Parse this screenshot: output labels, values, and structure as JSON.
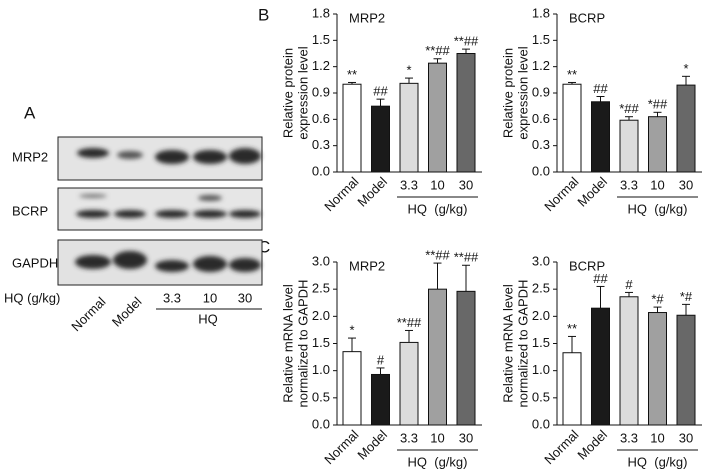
{
  "panel_labels": {
    "a": "A",
    "b": "B",
    "c": "C"
  },
  "blot_panel": {
    "rows": [
      "MRP2",
      "BCRP",
      "GAPDH"
    ],
    "dose_label": "HQ (g/kg)",
    "lanes": [
      "Normal",
      "Model",
      "3.3",
      "10",
      "30"
    ],
    "group_label": "HQ"
  },
  "chart_data": [
    {
      "type": "bar",
      "title": "MRP2",
      "ylabel": [
        "Relative protein",
        "expression level"
      ],
      "categories": [
        "Normal",
        "Model",
        "3.3",
        "10",
        "30"
      ],
      "group_label": "HQ  (g/kg)",
      "values": [
        1.0,
        0.75,
        1.01,
        1.24,
        1.35
      ],
      "errors": [
        0.02,
        0.08,
        0.06,
        0.05,
        0.05
      ],
      "annotations": [
        "**",
        "##",
        "*",
        "**##",
        "**##"
      ],
      "colors": [
        "#ffffff",
        "#1a1a1a",
        "#dcdcdc",
        "#a0a0a0",
        "#686868"
      ],
      "ylim": [
        0,
        1.8
      ],
      "yticks": [
        {
          "value": 0,
          "label": "0.0"
        },
        0.3,
        0.6,
        0.9,
        1.2,
        1.5,
        1.8
      ]
    },
    {
      "type": "bar",
      "title": "BCRP",
      "ylabel": [
        "Relative protein",
        "expression level"
      ],
      "categories": [
        "Normal",
        "Model",
        "3.3",
        "10",
        "30"
      ],
      "group_label": "HQ  (g/kg)",
      "values": [
        1.0,
        0.8,
        0.59,
        0.63,
        0.99
      ],
      "errors": [
        0.02,
        0.06,
        0.04,
        0.05,
        0.1
      ],
      "annotations": [
        "**",
        "##",
        "*##",
        "*##",
        "*"
      ],
      "colors": [
        "#ffffff",
        "#1a1a1a",
        "#dcdcdc",
        "#a0a0a0",
        "#686868"
      ],
      "ylim": [
        0,
        1.8
      ],
      "yticks": [
        {
          "value": 0,
          "label": "0.0"
        },
        0.3,
        0.6,
        0.9,
        1.2,
        1.5,
        1.8
      ]
    },
    {
      "type": "bar",
      "title": "MRP2",
      "ylabel": [
        "Relative mRNA level",
        "normalized to GAPDH"
      ],
      "categories": [
        "Normal",
        "Model",
        "3.3",
        "10",
        "30"
      ],
      "group_label": "HQ  (g/kg)",
      "values": [
        1.35,
        0.93,
        1.52,
        2.5,
        2.46
      ],
      "errors": [
        0.25,
        0.12,
        0.22,
        0.48,
        0.48
      ],
      "annotations": [
        "*",
        "#",
        "**##",
        "**##",
        "**##"
      ],
      "colors": [
        "#ffffff",
        "#1a1a1a",
        "#dcdcdc",
        "#a0a0a0",
        "#686868"
      ],
      "ylim": [
        0,
        3.0
      ],
      "yticks": [
        {
          "value": 0,
          "label": "0.0"
        },
        0.5,
        {
          "value": 1,
          "label": "1.0"
        },
        1.5,
        {
          "value": 2,
          "label": "2.0"
        },
        2.5,
        {
          "value": 3,
          "label": "3.0"
        }
      ]
    },
    {
      "type": "bar",
      "title": "BCRP",
      "ylabel": [
        "Relative mRNA level",
        "normalized to GAPDH"
      ],
      "categories": [
        "Normal",
        "Model",
        "3.3",
        "10",
        "30"
      ],
      "group_label": "HQ  (g/kg)",
      "values": [
        1.33,
        2.15,
        2.36,
        2.07,
        2.02
      ],
      "errors": [
        0.3,
        0.4,
        0.08,
        0.1,
        0.2
      ],
      "annotations": [
        "**",
        "##",
        "#",
        "*#",
        "*#"
      ],
      "colors": [
        "#ffffff",
        "#1a1a1a",
        "#dcdcdc",
        "#a0a0a0",
        "#686868"
      ],
      "ylim": [
        0,
        3.0
      ],
      "yticks": [
        {
          "value": 0,
          "label": "0.0"
        },
        0.5,
        {
          "value": 1,
          "label": "1.0"
        },
        1.5,
        {
          "value": 2,
          "label": "2.0"
        },
        2.5,
        {
          "value": 3,
          "label": "3.0"
        }
      ]
    }
  ]
}
